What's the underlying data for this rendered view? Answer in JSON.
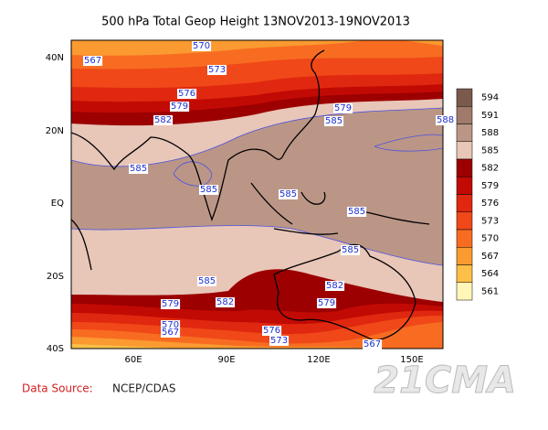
{
  "title": "500 hPa Total Geop Height 13NOV2013-19NOV2013",
  "lat_labels": [
    "40N",
    "20N",
    "EQ",
    "20S",
    "40S"
  ],
  "lon_labels": [
    "60E",
    "90E",
    "120E",
    "150E"
  ],
  "colorbar": {
    "levels": [
      594,
      591,
      588,
      585,
      582,
      579,
      576,
      573,
      570,
      567,
      564,
      561
    ],
    "colors": [
      "#7b5a4e",
      "#a07a6a",
      "#bb9686",
      "#e8c6b8",
      "#9c0000",
      "#c20a04",
      "#e02810",
      "#f04818",
      "#f86c22",
      "#fa9a30",
      "#fcc048",
      "#fff6b8"
    ]
  },
  "contour_labels": [
    570,
    567,
    573,
    576,
    579,
    582,
    585,
    585,
    585,
    585,
    585,
    585,
    582,
    579,
    582,
    579,
    570,
    567,
    576,
    573,
    567,
    585,
    579,
    588
  ],
  "source": {
    "label": "Data Source:",
    "value": "NCEP/CDAS"
  },
  "watermark": "21CMA"
}
